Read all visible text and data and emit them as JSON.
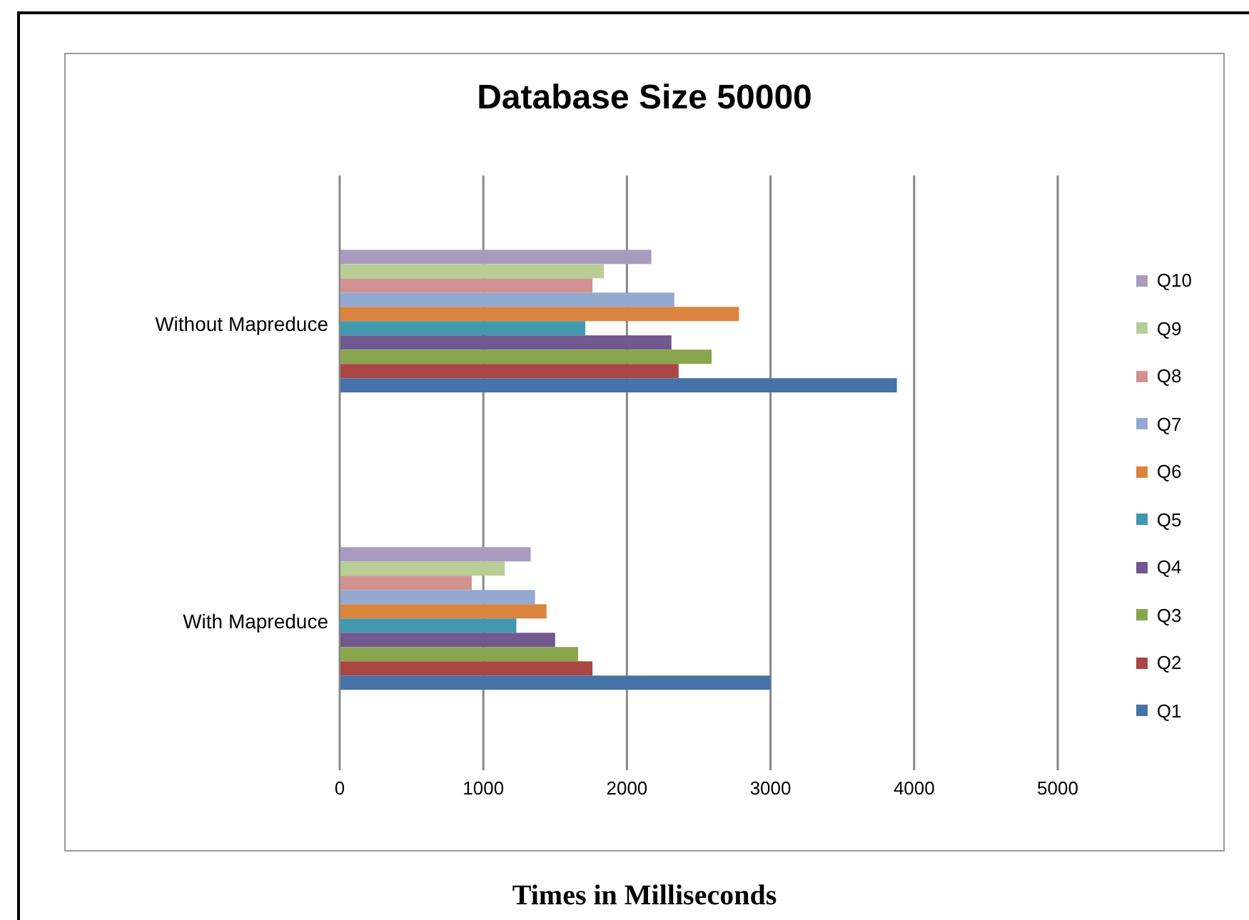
{
  "chart_data": {
    "type": "bar",
    "orientation": "horizontal",
    "title": "Database Size 50000",
    "xlabel": "Times in Milliseconds",
    "categories": [
      "Without Mapreduce",
      "With Mapreduce"
    ],
    "series": [
      {
        "name": "Q1",
        "color": "#4572a7",
        "values": [
          3880,
          3000
        ]
      },
      {
        "name": "Q2",
        "color": "#aa4643",
        "values": [
          2360,
          1760
        ]
      },
      {
        "name": "Q3",
        "color": "#89a54e",
        "values": [
          2590,
          1660
        ]
      },
      {
        "name": "Q4",
        "color": "#71588f",
        "values": [
          2310,
          1500
        ]
      },
      {
        "name": "Q5",
        "color": "#4198af",
        "values": [
          1710,
          1230
        ]
      },
      {
        "name": "Q6",
        "color": "#db843d",
        "values": [
          2780,
          1440
        ]
      },
      {
        "name": "Q7",
        "color": "#93a9cf",
        "values": [
          2330,
          1360
        ]
      },
      {
        "name": "Q8",
        "color": "#d19392",
        "values": [
          1760,
          920
        ]
      },
      {
        "name": "Q9",
        "color": "#b9cd96",
        "values": [
          1840,
          1150
        ]
      },
      {
        "name": "Q10",
        "color": "#a99bbd",
        "values": [
          2170,
          1330
        ]
      }
    ],
    "xlim": [
      0,
      5000
    ],
    "xticks": [
      0,
      1000,
      2000,
      3000,
      4000,
      5000
    ],
    "grid": "x",
    "legend": "right"
  }
}
